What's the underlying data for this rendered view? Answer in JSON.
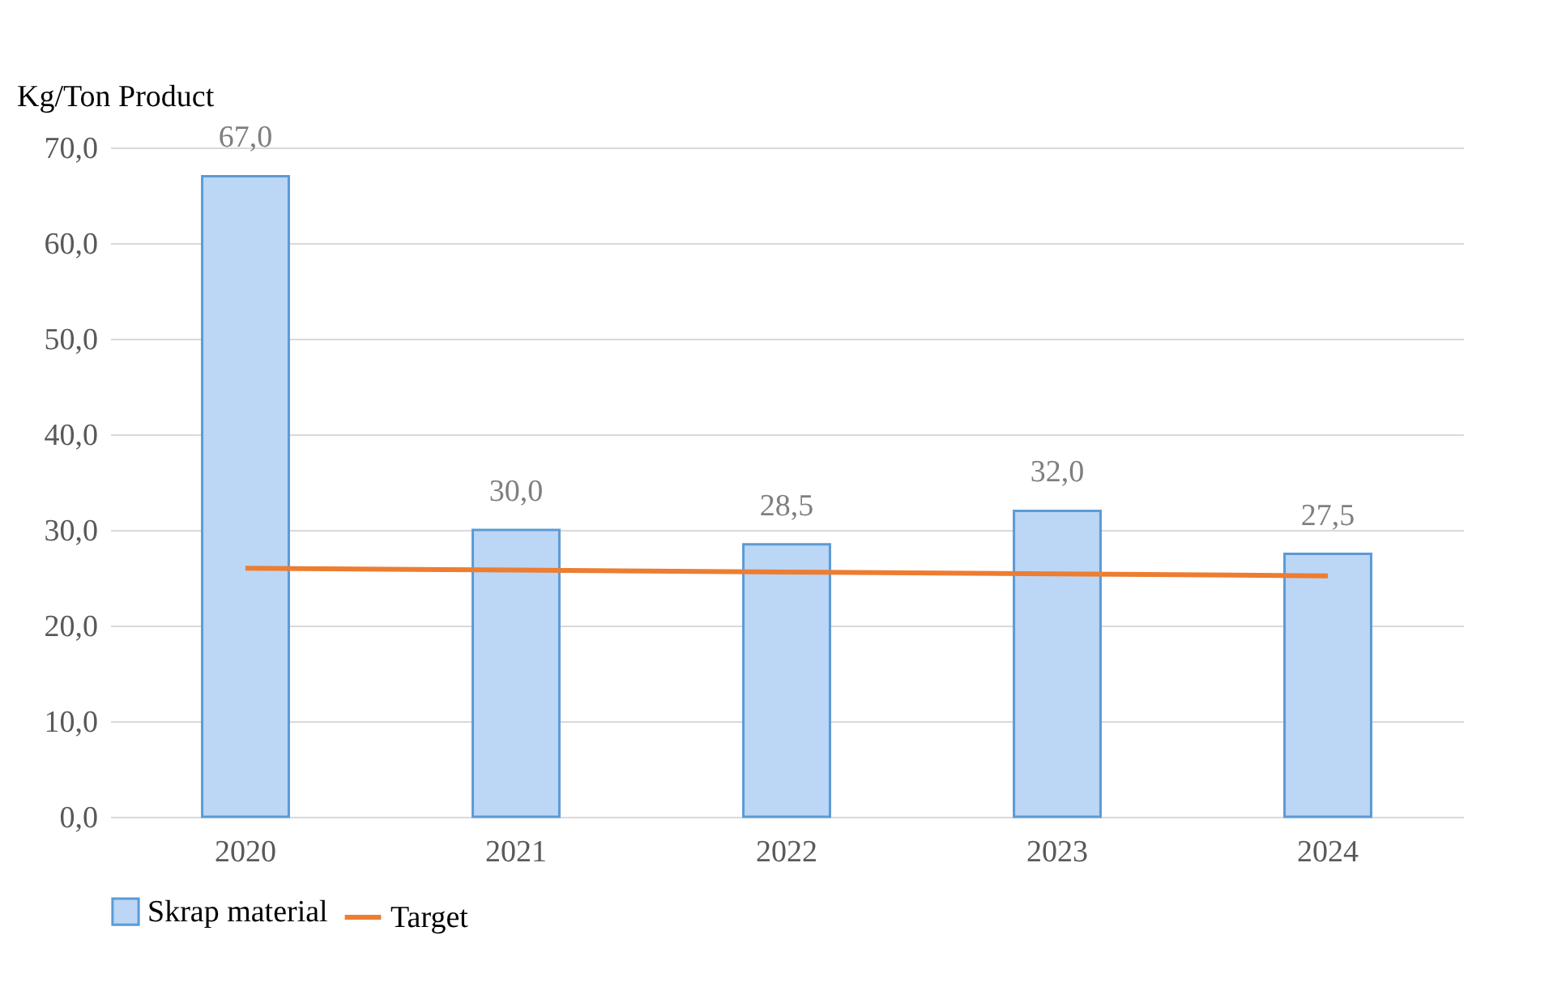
{
  "chart_data": {
    "type": "bar",
    "ylabel": "Kg/Ton Product",
    "categories": [
      "2020",
      "2021",
      "2022",
      "2023",
      "2024"
    ],
    "series": [
      {
        "name": "Skrap material",
        "color": "#bcd6f6",
        "values": [
          67.0,
          30.0,
          28.5,
          32.0,
          27.5
        ],
        "value_labels": [
          "67,0",
          "30,0",
          "28,5",
          "32,0",
          "27,5"
        ]
      },
      {
        "name": "Target",
        "type": "line",
        "color": "#ed7d31",
        "values": [
          26.0,
          25.8,
          25.6,
          25.4,
          25.2
        ]
      }
    ],
    "ylim": [
      0,
      70
    ],
    "yticks": [
      {
        "value": 0,
        "label": "0,0"
      },
      {
        "value": 10,
        "label": "10,0"
      },
      {
        "value": 20,
        "label": "20,0"
      },
      {
        "value": 30,
        "label": "30,0"
      },
      {
        "value": 40,
        "label": "40,0"
      },
      {
        "value": 50,
        "label": "50,0"
      },
      {
        "value": 60,
        "label": "60,0"
      },
      {
        "value": 70,
        "label": "70,0"
      }
    ],
    "grid": "y",
    "legend": "bottom",
    "marker": "none",
    "line_style": "solid"
  }
}
